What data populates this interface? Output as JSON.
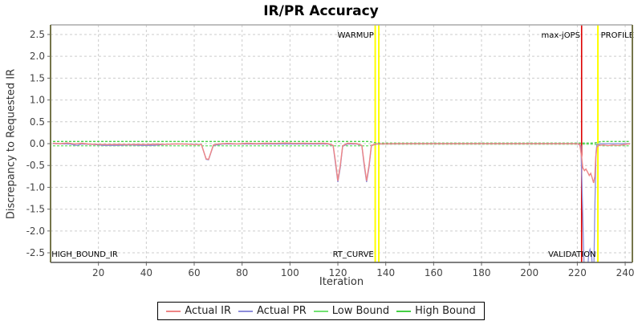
{
  "title": "IR/PR Accuracy",
  "axes": {
    "x": {
      "label": "Iteration",
      "ticks": [
        20,
        40,
        60,
        80,
        100,
        120,
        140,
        160,
        180,
        200,
        220,
        240
      ],
      "range": [
        0,
        243
      ]
    },
    "y": {
      "label": "Discrepancy to Requested IR",
      "ticks": [
        2.5,
        2.0,
        1.5,
        1.0,
        0.5,
        0.0,
        -0.5,
        -1.0,
        -1.5,
        -2.0,
        -2.5
      ],
      "range": [
        -2.72,
        2.72
      ]
    }
  },
  "colors": {
    "actual_ir": "#ee8585",
    "actual_pr": "#8c8cd9",
    "low_bound": "#72e272",
    "high_bound": "#44cf44",
    "marker_yellow": "#ffff00",
    "marker_red": "#dd0000",
    "grid": "#cccccc",
    "border_side": "#75754a",
    "border_top": "#aaaaaa",
    "border_bottom": "#555555",
    "tick_text": "#444444"
  },
  "legend": [
    {
      "name": "actual-ir",
      "label": "Actual IR",
      "color": "#ee8585"
    },
    {
      "name": "actual-pr",
      "label": "Actual PR",
      "color": "#8c8cd9"
    },
    {
      "name": "low-bound",
      "label": "Low Bound",
      "color": "#72e272"
    },
    {
      "name": "high-bound",
      "label": "High Bound",
      "color": "#44cf44"
    }
  ],
  "annotations": {
    "vlines": [
      {
        "name": "warmup-line-1",
        "x": 135.6,
        "color": "#ffff00",
        "width": 2
      },
      {
        "name": "warmup-line-2",
        "x": 137.1,
        "color": "#ffff00",
        "width": 2
      },
      {
        "name": "max-jops-line",
        "x": 221.8,
        "color": "#dd0000",
        "width": 1.6
      },
      {
        "name": "profile-line",
        "x": 228.6,
        "color": "#ffff00",
        "width": 2
      }
    ],
    "labels": [
      {
        "name": "warmup-label",
        "text": "WARMUP",
        "x": 135.0,
        "anchor": "end",
        "pos": "top"
      },
      {
        "name": "rt-curve-label",
        "text": "RT_CURVE",
        "x": 135.0,
        "anchor": "end",
        "pos": "bottom"
      },
      {
        "name": "max-jops-label",
        "text": "max-jOPS",
        "x": 221.2,
        "anchor": "end",
        "pos": "top"
      },
      {
        "name": "validation-label",
        "text": "VALIDATION",
        "x": 227.8,
        "anchor": "end",
        "pos": "bottom"
      },
      {
        "name": "profile-label",
        "text": "PROFILE",
        "x": 229.8,
        "anchor": "start",
        "pos": "top"
      },
      {
        "name": "high-bound-ir-label",
        "text": "HIGH_BOUND_IR",
        "x": 0.4,
        "anchor": "start",
        "pos": "bottom"
      }
    ]
  },
  "chart_data": {
    "type": "line",
    "title": "IR/PR Accuracy",
    "xlabel": "Iteration",
    "ylabel": "Discrepancy to Requested IR",
    "xlim": [
      0,
      243
    ],
    "ylim": [
      -2.72,
      2.72
    ],
    "grid": true,
    "legend_position": "bottom",
    "series": [
      {
        "name": "Low Bound",
        "color": "#72e272",
        "points": [
          [
            1,
            -0.05
          ],
          [
            133,
            -0.05
          ],
          [
            136.5,
            -0.012
          ],
          [
            227,
            -0.012
          ],
          [
            230,
            -0.05
          ],
          [
            242,
            -0.05
          ]
        ]
      },
      {
        "name": "High Bound",
        "color": "#44cf44",
        "points": [
          [
            1,
            0.05
          ],
          [
            133,
            0.05
          ],
          [
            136.5,
            0.012
          ],
          [
            227,
            0.012
          ],
          [
            230,
            0.05
          ],
          [
            242,
            0.05
          ]
        ]
      },
      {
        "name": "Actual PR",
        "color": "#8c8cd9",
        "points": [
          [
            1,
            0
          ],
          [
            8,
            -0.01
          ],
          [
            11,
            -0.04
          ],
          [
            13,
            -0.01
          ],
          [
            18,
            -0.02
          ],
          [
            22,
            -0.04
          ],
          [
            28,
            -0.04
          ],
          [
            33,
            -0.03
          ],
          [
            38,
            -0.04
          ],
          [
            43,
            -0.04
          ],
          [
            47,
            -0.02
          ],
          [
            52,
            -0.01
          ],
          [
            58,
            -0.01
          ],
          [
            63,
            -0.02
          ],
          [
            65,
            -0.36
          ],
          [
            66,
            -0.37
          ],
          [
            68,
            -0.04
          ],
          [
            72,
            -0.01
          ],
          [
            80,
            -0.01
          ],
          [
            90,
            -0.01
          ],
          [
            100,
            -0.01
          ],
          [
            110,
            -0.01
          ],
          [
            116,
            -0.01
          ],
          [
            118,
            -0.05
          ],
          [
            119,
            -0.45
          ],
          [
            120,
            -0.88
          ],
          [
            121,
            -0.55
          ],
          [
            122,
            -0.06
          ],
          [
            124,
            -0.01
          ],
          [
            128,
            -0.01
          ],
          [
            130,
            -0.05
          ],
          [
            131,
            -0.5
          ],
          [
            132,
            -0.88
          ],
          [
            133,
            -0.55
          ],
          [
            134,
            -0.05
          ],
          [
            136,
            -0.01
          ],
          [
            150,
            0
          ],
          [
            170,
            0
          ],
          [
            190,
            0
          ],
          [
            210,
            0
          ],
          [
            220,
            0
          ],
          [
            221.5,
            -0.05
          ],
          [
            222,
            -1.0
          ],
          [
            222.8,
            -2.72
          ],
          [
            223,
            -2.9
          ],
          [
            224.3,
            -2.9
          ],
          [
            224.8,
            -2.5
          ],
          [
            225.3,
            -2.42
          ],
          [
            226,
            -2.6
          ],
          [
            226.4,
            -2.9
          ],
          [
            226.9,
            -2.9
          ],
          [
            227.3,
            -1.5
          ],
          [
            227.8,
            -0.2
          ],
          [
            228.2,
            -0.02
          ],
          [
            230,
            0
          ],
          [
            235,
            0
          ],
          [
            242,
            0
          ]
        ]
      },
      {
        "name": "Actual IR",
        "color": "#ee8585",
        "points": [
          [
            1,
            0.01
          ],
          [
            4,
            0
          ],
          [
            7,
            0.015
          ],
          [
            10,
            -0.005
          ],
          [
            13,
            0.01
          ],
          [
            16,
            -0.01
          ],
          [
            20,
            -0.015
          ],
          [
            24,
            -0.02
          ],
          [
            28,
            -0.015
          ],
          [
            32,
            -0.02
          ],
          [
            36,
            -0.015
          ],
          [
            40,
            -0.02
          ],
          [
            44,
            -0.01
          ],
          [
            48,
            -0.015
          ],
          [
            52,
            -0.005
          ],
          [
            56,
            -0.01
          ],
          [
            60,
            -0.02
          ],
          [
            63,
            -0.02
          ],
          [
            65,
            -0.35
          ],
          [
            66,
            -0.36
          ],
          [
            68,
            -0.03
          ],
          [
            70,
            -0.005
          ],
          [
            74,
            0.005
          ],
          [
            78,
            -0.005
          ],
          [
            82,
            0.01
          ],
          [
            86,
            0
          ],
          [
            90,
            0.01
          ],
          [
            94,
            0.005
          ],
          [
            98,
            0.015
          ],
          [
            102,
            0.005
          ],
          [
            106,
            0.01
          ],
          [
            110,
            0.005
          ],
          [
            114,
            0.01
          ],
          [
            116,
            0
          ],
          [
            118,
            -0.04
          ],
          [
            119,
            -0.4
          ],
          [
            120,
            -0.85
          ],
          [
            121,
            -0.5
          ],
          [
            122,
            -0.05
          ],
          [
            124,
            0.01
          ],
          [
            126,
            0.005
          ],
          [
            128,
            0
          ],
          [
            130,
            -0.04
          ],
          [
            131,
            -0.45
          ],
          [
            132,
            -0.85
          ],
          [
            133,
            -0.5
          ],
          [
            134,
            -0.04
          ],
          [
            136,
            -0.005
          ],
          [
            145,
            0
          ],
          [
            160,
            0
          ],
          [
            175,
            0
          ],
          [
            190,
            0
          ],
          [
            205,
            0
          ],
          [
            218,
            0
          ],
          [
            221,
            -0.01
          ],
          [
            221.8,
            -0.3
          ],
          [
            222.3,
            -0.55
          ],
          [
            223,
            -0.62
          ],
          [
            223.6,
            -0.58
          ],
          [
            224.3,
            -0.65
          ],
          [
            225,
            -0.73
          ],
          [
            225.6,
            -0.68
          ],
          [
            226.2,
            -0.78
          ],
          [
            226.8,
            -0.9
          ],
          [
            227.3,
            -0.75
          ],
          [
            227.7,
            -0.3
          ],
          [
            228.2,
            -0.08
          ],
          [
            229,
            -0.04
          ],
          [
            231,
            -0.03
          ],
          [
            233,
            -0.045
          ],
          [
            235,
            -0.03
          ],
          [
            237,
            -0.04
          ],
          [
            239,
            -0.025
          ],
          [
            241,
            -0.01
          ],
          [
            242,
            -0.005
          ]
        ]
      }
    ]
  }
}
